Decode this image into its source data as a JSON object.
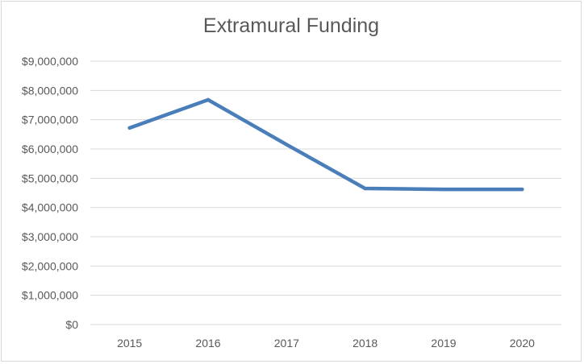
{
  "chart_data": {
    "type": "line",
    "title": "Extramural Funding",
    "xlabel": "",
    "ylabel": "",
    "categories": [
      "2015",
      "2016",
      "2017",
      "2018",
      "2019",
      "2020"
    ],
    "series": [
      {
        "values": [
          6720000,
          7680000,
          6150000,
          4650000,
          4620000,
          4620000
        ],
        "color": "#4a7ebb"
      }
    ],
    "ylim": [
      0,
      9000000
    ],
    "yticks": [
      0,
      1000000,
      2000000,
      3000000,
      4000000,
      5000000,
      6000000,
      7000000,
      8000000,
      9000000
    ],
    "ytick_labels": [
      "$0",
      "$1,000,000",
      "$2,000,000",
      "$3,000,000",
      "$4,000,000",
      "$5,000,000",
      "$6,000,000",
      "$7,000,000",
      "$8,000,000",
      "$9,000,000"
    ],
    "grid": true,
    "gridline_color": "#d9d9d9",
    "legend": "none"
  }
}
